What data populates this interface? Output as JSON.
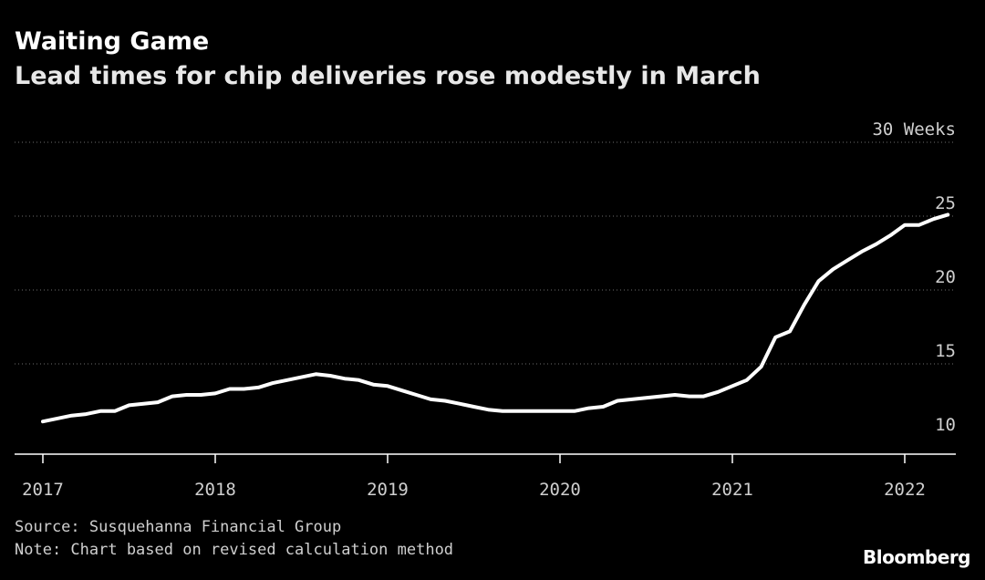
{
  "header": {
    "title": "Waiting Game",
    "subtitle": "Lead times for chip deliveries rose modestly in March"
  },
  "footer": {
    "source": "Source: Susquehanna Financial Group",
    "note": "Note: Chart based on revised calculation method",
    "logo": "Bloomberg"
  },
  "colors": {
    "background": "#000000",
    "line": "#ffffff",
    "grid": "#6e6e6e",
    "text": "#cfcfcf"
  },
  "chart_data": {
    "type": "line",
    "title": "Waiting Game",
    "subtitle": "Lead times for chip deliveries rose modestly in March",
    "xlabel": "",
    "ylabel": "",
    "y_unit_label": "Weeks",
    "ylim": [
      9,
      31
    ],
    "xlim": [
      "2017-01",
      "2022-06"
    ],
    "y_ticks": [
      10,
      15,
      20,
      25,
      30
    ],
    "y_tick_labels": [
      "10",
      "15",
      "20",
      "25",
      "30 Weeks"
    ],
    "x_ticks": [
      "2017",
      "2018",
      "2019",
      "2020",
      "2021",
      "2022"
    ],
    "grid": "horizontal dotted",
    "legend": "none",
    "series": [
      {
        "points": [
          [
            "2017-01",
            11.1
          ],
          [
            "2017-02",
            11.3
          ],
          [
            "2017-03",
            11.5
          ],
          [
            "2017-04",
            11.6
          ],
          [
            "2017-05",
            11.8
          ],
          [
            "2017-06",
            11.8
          ],
          [
            "2017-07",
            12.2
          ],
          [
            "2017-08",
            12.3
          ],
          [
            "2017-09",
            12.4
          ],
          [
            "2017-10",
            12.8
          ],
          [
            "2017-11",
            12.9
          ],
          [
            "2017-12",
            12.9
          ],
          [
            "2018-01",
            13.0
          ],
          [
            "2018-02",
            13.3
          ],
          [
            "2018-03",
            13.3
          ],
          [
            "2018-04",
            13.4
          ],
          [
            "2018-05",
            13.7
          ],
          [
            "2018-06",
            13.9
          ],
          [
            "2018-07",
            14.1
          ],
          [
            "2018-08",
            14.3
          ],
          [
            "2018-09",
            14.2
          ],
          [
            "2018-10",
            14.0
          ],
          [
            "2018-11",
            13.9
          ],
          [
            "2018-12",
            13.6
          ],
          [
            "2019-01",
            13.5
          ],
          [
            "2019-02",
            13.2
          ],
          [
            "2019-03",
            12.9
          ],
          [
            "2019-04",
            12.6
          ],
          [
            "2019-05",
            12.5
          ],
          [
            "2019-06",
            12.3
          ],
          [
            "2019-07",
            12.1
          ],
          [
            "2019-08",
            11.9
          ],
          [
            "2019-09",
            11.8
          ],
          [
            "2019-10",
            11.8
          ],
          [
            "2019-11",
            11.8
          ],
          [
            "2019-12",
            11.8
          ],
          [
            "2020-01",
            11.8
          ],
          [
            "2020-02",
            11.8
          ],
          [
            "2020-03",
            12.0
          ],
          [
            "2020-04",
            12.1
          ],
          [
            "2020-05",
            12.5
          ],
          [
            "2020-06",
            12.6
          ],
          [
            "2020-07",
            12.7
          ],
          [
            "2020-08",
            12.8
          ],
          [
            "2020-09",
            12.9
          ],
          [
            "2020-10",
            12.8
          ],
          [
            "2020-11",
            12.8
          ],
          [
            "2020-12",
            13.1
          ],
          [
            "2021-01",
            13.5
          ],
          [
            "2021-02",
            13.9
          ],
          [
            "2021-03",
            14.8
          ],
          [
            "2021-04",
            16.8
          ],
          [
            "2021-05",
            17.2
          ],
          [
            "2021-06",
            19.0
          ],
          [
            "2021-07",
            20.6
          ],
          [
            "2021-08",
            21.4
          ],
          [
            "2021-09",
            22.0
          ],
          [
            "2021-10",
            22.6
          ],
          [
            "2021-11",
            23.1
          ],
          [
            "2021-12",
            23.7
          ],
          [
            "2022-01",
            24.4
          ],
          [
            "2022-02",
            24.4
          ],
          [
            "2022-03",
            24.8
          ],
          [
            "2022-04",
            25.1
          ]
        ]
      }
    ]
  }
}
